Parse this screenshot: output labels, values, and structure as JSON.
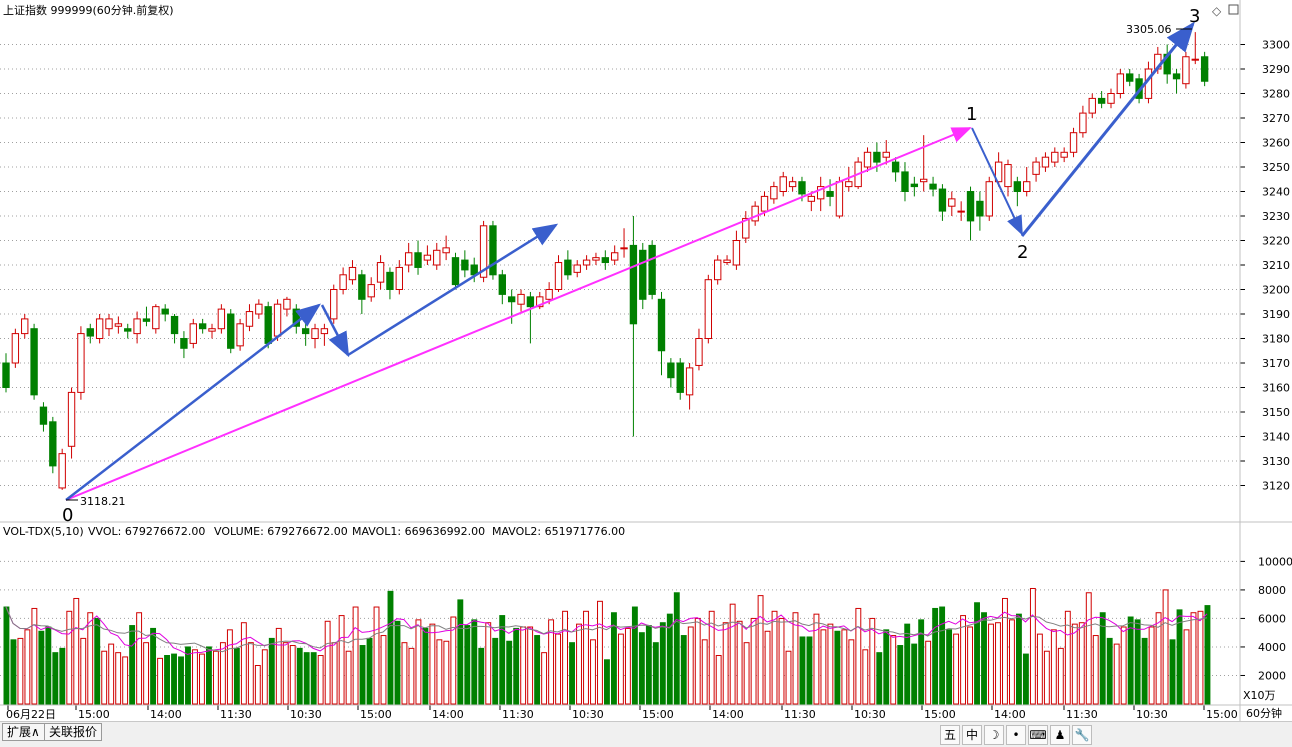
{
  "header": {
    "title": "上证指数 999999(60分钟.前复权)",
    "icons": [
      "diamond-icon",
      "restore-window-icon"
    ]
  },
  "volume_header": {
    "indicator": "VOL-TDX(5,10)",
    "vvol": "VVOL: 679276672.00",
    "volume": "VOLUME: 679276672.00",
    "mavol1": "MAVOL1: 669636992.00",
    "mavol2": "MAVOL2: 651971776.00",
    "colors": {
      "vvol": "#000000",
      "volume": "#e000e0",
      "mavol1": "#e000e0",
      "mavol2": "#808080"
    }
  },
  "annotations": {
    "wave_labels": [
      "0",
      "1",
      "2",
      "3"
    ],
    "low_label": "3118.21",
    "high_label": "3305.06"
  },
  "bottom_bar": {
    "tabs": [
      "扩展∧",
      "关联报价"
    ],
    "toolbar": [
      "五",
      "中",
      "☽",
      "•",
      "⌨",
      "♟",
      "🔧"
    ],
    "toolbar_icons": [
      "five-icon",
      "chinese-input-icon",
      "moon-icon",
      "dot-icon",
      "keyboard-icon",
      "user-icon",
      "wrench-icon"
    ]
  },
  "chart_data": [
    {
      "type": "candlestick",
      "title": "上证指数 999999(60分钟.前复权)",
      "ylim": [
        3110,
        3310
      ],
      "yticks": [
        3120,
        3130,
        3140,
        3150,
        3160,
        3170,
        3180,
        3190,
        3200,
        3210,
        3220,
        3230,
        3240,
        3250,
        3260,
        3270,
        3280,
        3290,
        3300
      ],
      "colors": {
        "up": "#d00000",
        "down": "#008000",
        "grid": "#a0a0a0"
      },
      "x_labels": [
        "06月22日",
        "15:00",
        "14:00",
        "11:30",
        "10:30",
        "15:00",
        "14:00",
        "11:30",
        "10:30",
        "15:00",
        "14:00",
        "11:30",
        "10:30",
        "15:00",
        "14:00",
        "11:30",
        "10:30",
        "15:00"
      ],
      "period_label": "60分钟",
      "candles": [
        [
          3170,
          3160,
          3174,
          3158
        ],
        [
          3170,
          3182,
          3184,
          3168
        ],
        [
          3182,
          3188,
          3190,
          3180
        ],
        [
          3184,
          3157,
          3186,
          3155
        ],
        [
          3152,
          3145,
          3154,
          3142
        ],
        [
          3146,
          3128,
          3148,
          3125
        ],
        [
          3119,
          3133,
          3135,
          3118.21
        ],
        [
          3136,
          3158,
          3160,
          3131
        ],
        [
          3158,
          3182,
          3185,
          3155
        ],
        [
          3184,
          3181,
          3186,
          3178
        ],
        [
          3180,
          3188,
          3190,
          3178
        ],
        [
          3184,
          3188,
          3190,
          3181
        ],
        [
          3185,
          3186,
          3189,
          3182
        ],
        [
          3184,
          3183,
          3186,
          3180
        ],
        [
          3182,
          3188,
          3191,
          3178
        ],
        [
          3188,
          3187,
          3193,
          3185
        ],
        [
          3184,
          3193,
          3194,
          3182
        ],
        [
          3192,
          3190,
          3194,
          3187
        ],
        [
          3189,
          3182,
          3190,
          3178
        ],
        [
          3180,
          3176,
          3183,
          3172
        ],
        [
          3178,
          3186,
          3188,
          3176
        ],
        [
          3186,
          3184,
          3188,
          3182
        ],
        [
          3183,
          3184,
          3186,
          3180
        ],
        [
          3184,
          3192,
          3194,
          3182
        ],
        [
          3190,
          3176,
          3192,
          3174
        ],
        [
          3177,
          3186,
          3188,
          3175
        ],
        [
          3185,
          3191,
          3194,
          3183
        ],
        [
          3190,
          3194,
          3196,
          3188
        ],
        [
          3193,
          3178,
          3195,
          3176
        ],
        [
          3181,
          3194,
          3196,
          3179
        ],
        [
          3192,
          3196,
          3197,
          3189
        ],
        [
          3192,
          3185,
          3194,
          3182
        ],
        [
          3184,
          3182,
          3186,
          3177
        ],
        [
          3180,
          3184,
          3186,
          3176
        ],
        [
          3182,
          3184,
          3186,
          3177
        ],
        [
          3188,
          3200,
          3202,
          3186
        ],
        [
          3200,
          3206,
          3209,
          3198
        ],
        [
          3204,
          3209,
          3212,
          3202
        ],
        [
          3206,
          3196,
          3208,
          3190
        ],
        [
          3197,
          3202,
          3205,
          3195
        ],
        [
          3203,
          3211,
          3214,
          3200
        ],
        [
          3207,
          3200,
          3209,
          3196
        ],
        [
          3200,
          3209,
          3212,
          3198
        ],
        [
          3210,
          3215,
          3219,
          3207
        ],
        [
          3215,
          3209,
          3220,
          3206
        ],
        [
          3212,
          3214,
          3218,
          3210
        ],
        [
          3210,
          3216,
          3219,
          3208
        ],
        [
          3215,
          3217,
          3222,
          3212
        ],
        [
          3213,
          3202,
          3215,
          3200
        ],
        [
          3212,
          3208,
          3216,
          3205
        ],
        [
          3210,
          3206,
          3213,
          3203
        ],
        [
          3205,
          3226,
          3228,
          3203
        ],
        [
          3226,
          3206,
          3228,
          3204
        ],
        [
          3206,
          3198,
          3208,
          3194
        ],
        [
          3197,
          3195,
          3200,
          3186
        ],
        [
          3194,
          3198,
          3200,
          3191
        ],
        [
          3197,
          3193,
          3199,
          3178
        ],
        [
          3193,
          3197,
          3199,
          3192
        ],
        [
          3196,
          3200,
          3203,
          3194
        ],
        [
          3200,
          3211,
          3214,
          3199
        ],
        [
          3212,
          3206,
          3216,
          3204
        ],
        [
          3207,
          3210,
          3212,
          3205
        ],
        [
          3210,
          3212,
          3214,
          3208
        ],
        [
          3212,
          3213,
          3215,
          3210
        ],
        [
          3213,
          3211,
          3216,
          3208
        ],
        [
          3212,
          3215,
          3218,
          3210
        ],
        [
          3217,
          3217,
          3225,
          3213
        ],
        [
          3218,
          3186,
          3230,
          3140
        ],
        [
          3216,
          3196,
          3219,
          3192
        ],
        [
          3218,
          3198,
          3220,
          3196
        ],
        [
          3196,
          3175,
          3199,
          3165
        ],
        [
          3170,
          3164,
          3172,
          3160
        ],
        [
          3170,
          3158,
          3172,
          3155
        ],
        [
          3157,
          3168,
          3170,
          3151
        ],
        [
          3169,
          3180,
          3184,
          3167
        ],
        [
          3180,
          3204,
          3206,
          3178
        ],
        [
          3204,
          3212,
          3214,
          3202
        ],
        [
          3211,
          3212,
          3214,
          3210
        ],
        [
          3210,
          3220,
          3224,
          3208
        ],
        [
          3221,
          3229,
          3232,
          3219
        ],
        [
          3228,
          3234,
          3236,
          3226
        ],
        [
          3232,
          3238,
          3240,
          3230
        ],
        [
          3237,
          3242,
          3244,
          3235
        ],
        [
          3240,
          3246,
          3248,
          3238
        ],
        [
          3242,
          3244,
          3246,
          3240
        ],
        [
          3244,
          3239,
          3246,
          3236
        ],
        [
          3236,
          3238,
          3240,
          3232
        ],
        [
          3237,
          3242,
          3246,
          3232
        ],
        [
          3240,
          3238,
          3245,
          3234
        ],
        [
          3230,
          3244,
          3246,
          3229
        ],
        [
          3242,
          3244,
          3250,
          3240
        ],
        [
          3242,
          3252,
          3254,
          3241
        ],
        [
          3250,
          3256,
          3258,
          3248
        ],
        [
          3256,
          3252,
          3260,
          3248
        ],
        [
          3254,
          3256,
          3261,
          3251
        ],
        [
          3252,
          3248,
          3254,
          3244
        ],
        [
          3248,
          3240,
          3252,
          3236
        ],
        [
          3243,
          3242,
          3246,
          3238
        ],
        [
          3244,
          3245,
          3263,
          3240
        ],
        [
          3243,
          3241,
          3246,
          3238
        ],
        [
          3241,
          3232,
          3243,
          3228
        ],
        [
          3234,
          3237,
          3240,
          3230
        ],
        [
          3232,
          3232,
          3236,
          3228
        ],
        [
          3240,
          3228,
          3242,
          3220
        ],
        [
          3236,
          3230,
          3240,
          3224
        ],
        [
          3230,
          3244,
          3246,
          3228
        ],
        [
          3244,
          3252,
          3256,
          3242
        ],
        [
          3242,
          3251,
          3253,
          3238
        ],
        [
          3244,
          3240,
          3246,
          3234
        ],
        [
          3240,
          3244,
          3250,
          3238
        ],
        [
          3247,
          3252,
          3254,
          3244
        ],
        [
          3250,
          3254,
          3256,
          3248
        ],
        [
          3252,
          3256,
          3258,
          3250
        ],
        [
          3254,
          3256,
          3258,
          3252
        ],
        [
          3256,
          3264,
          3266,
          3254
        ],
        [
          3264,
          3272,
          3275,
          3262
        ],
        [
          3272,
          3278,
          3280,
          3270
        ],
        [
          3278,
          3276,
          3281,
          3274
        ],
        [
          3276,
          3280,
          3282,
          3274
        ],
        [
          3280,
          3288,
          3290,
          3278
        ],
        [
          3288,
          3285,
          3290,
          3283
        ],
        [
          3286,
          3278,
          3288,
          3276
        ],
        [
          3278,
          3290,
          3293,
          3276
        ],
        [
          3290,
          3296,
          3299,
          3288
        ],
        [
          3296,
          3288,
          3300,
          3284
        ],
        [
          3288,
          3286,
          3290,
          3280
        ],
        [
          3284,
          3295,
          3297,
          3282
        ],
        [
          3294,
          3294,
          3305.06,
          3292
        ],
        [
          3295,
          3285,
          3297,
          3283
        ]
      ]
    },
    {
      "type": "bar",
      "title": "VOL-TDX(5,10)",
      "ylabel": "X10万",
      "ylim": [
        0,
        11500
      ],
      "yticks": [
        2000,
        4000,
        6000,
        8000,
        10000
      ],
      "series": [
        {
          "name": "VOLUME",
          "values": [
            6800,
            4500,
            4600,
            5200,
            6700,
            5100,
            5400,
            3600,
            3900,
            6500,
            7400,
            4600,
            6400,
            6000,
            3700,
            4200,
            3600,
            3300,
            5500,
            6400,
            4300,
            5300,
            3200,
            3400,
            3500,
            3300,
            4000,
            3800,
            3500,
            4000,
            3700,
            4300,
            5200,
            3900,
            5700,
            4300,
            2700,
            3800,
            4600,
            5300,
            4300,
            4100,
            3900,
            3600,
            3600,
            3400,
            5800,
            4300,
            6200,
            3700,
            6800,
            4100,
            4600,
            6800,
            4800,
            7900,
            5800,
            4300,
            3900,
            5900,
            5300,
            5600,
            4500,
            4400,
            6100,
            7300,
            5500,
            5900,
            3900,
            5700,
            4600,
            6200,
            4400,
            5300,
            5400,
            5400,
            4800,
            3600,
            5900,
            4900,
            6500,
            4300,
            5600,
            6500,
            4500,
            7200,
            3100,
            6400,
            4900,
            5300,
            6800,
            5000,
            5500,
            4300,
            5700,
            6300,
            7800,
            4800,
            5400,
            6000,
            4500,
            6500,
            3400,
            5700,
            7000,
            5800,
            4300,
            6000,
            7600,
            5100,
            6500,
            6000,
            3700,
            6400,
            4700,
            4700,
            6300,
            5200,
            5600,
            5100,
            5200,
            4500,
            6700,
            3800,
            6000,
            3600,
            5200,
            4800,
            4100,
            5600,
            4200,
            5900,
            4400,
            6700,
            6800,
            5200,
            4900,
            6200,
            5400,
            7100,
            6400,
            5600,
            5700,
            7400,
            5900,
            6300,
            3500,
            8100,
            4900,
            3700,
            5200,
            3900,
            6500,
            5600,
            5700,
            7800,
            4800,
            6400,
            4600,
            4200,
            5400,
            6100,
            5900,
            4600,
            5400,
            6400,
            8000,
            4500,
            6600,
            5200,
            6400,
            6500,
            6900
          ]
        },
        {
          "name": "MAVOL1",
          "values": []
        },
        {
          "name": "MAVOL2",
          "values": []
        }
      ]
    }
  ]
}
